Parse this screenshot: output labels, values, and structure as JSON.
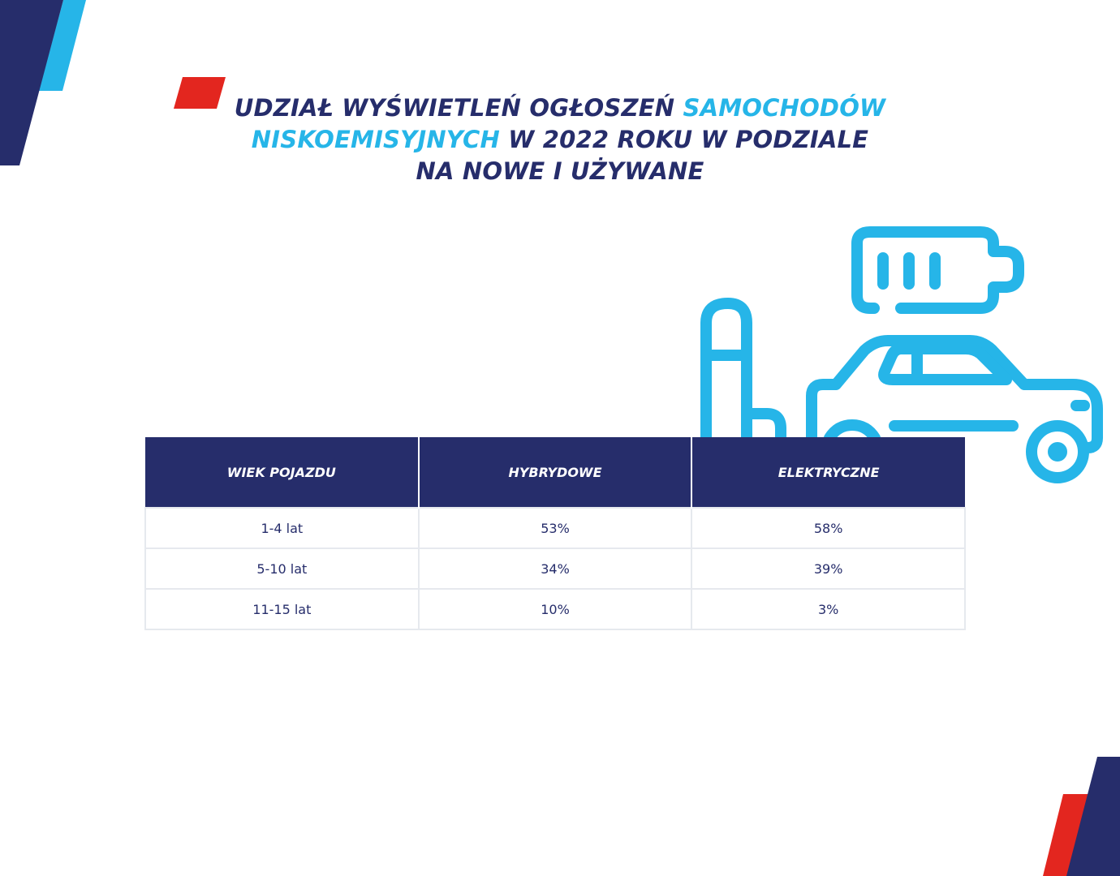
{
  "title": {
    "line1_part1": "UDZIAŁ WYŚWIETLEŃ OGŁOSZEŃ ",
    "line1_accent": "SAMOCHODÓW",
    "line2_accent": "NISKOEMISYJNYCH",
    "line2_part2": " W 2022 ROKU W PODZIALE",
    "line3": "NA NOWE I UŻYWANE"
  },
  "colors": {
    "navy": "#262d6b",
    "cyan": "#26b5e8",
    "red": "#e3261f",
    "table_border": "#e6e9ee"
  },
  "icon": "ev-car-charging-battery-icon",
  "chart_data": {
    "type": "table",
    "title": "UDZIAŁ WYŚWIETLEŃ OGŁOSZEŃ SAMOCHODÓW NISKOEMISYJNYCH W 2022 ROKU W PODZIALE NA NOWE I UŻYWANE",
    "columns": [
      "WIEK POJAZDU",
      "HYBRYDOWE",
      "ELEKTRYCZNE"
    ],
    "rows": [
      [
        "1-4 lat",
        "53%",
        "58%"
      ],
      [
        "5-10 lat",
        "34%",
        "39%"
      ],
      [
        "11-15 lat",
        "10%",
        "3%"
      ]
    ]
  }
}
